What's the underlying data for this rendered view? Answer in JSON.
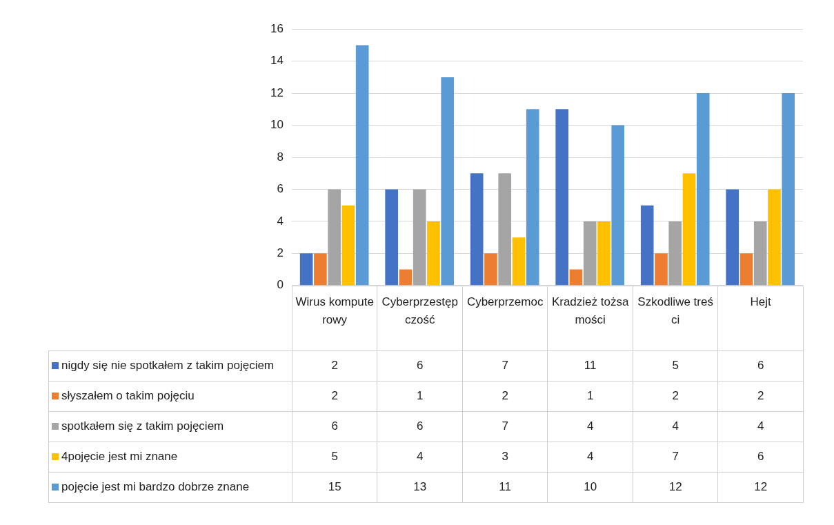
{
  "chart_data": {
    "type": "bar",
    "categories": [
      "Wirus komputerowy",
      "Cyberprzestępczość",
      "Cyberprzemoc",
      "Kradzież tożsamości",
      "Szkodliwe treści",
      "Hejt"
    ],
    "series": [
      {
        "name": "nigdy się nie spotkałem z takim pojęciem",
        "color": "#4472c4",
        "values": [
          2,
          6,
          7,
          11,
          5,
          6
        ]
      },
      {
        "name": "słyszałem o takim pojęciu",
        "color": "#ed7d31",
        "values": [
          2,
          1,
          2,
          1,
          2,
          2
        ]
      },
      {
        "name": "spotkałem się z takim pojęciem",
        "color": "#a5a5a5",
        "values": [
          6,
          6,
          7,
          4,
          4,
          4
        ]
      },
      {
        "name": "4pojęcie jest mi znane",
        "color": "#ffc000",
        "values": [
          5,
          4,
          3,
          4,
          7,
          6
        ]
      },
      {
        "name": "pojęcie jest mi bardzo dobrze znane",
        "color": "#5b9bd5",
        "values": [
          15,
          13,
          11,
          10,
          12,
          12
        ]
      }
    ],
    "ylim": [
      0,
      16
    ],
    "yticks": [
      0,
      2,
      4,
      6,
      8,
      10,
      12,
      14,
      16
    ],
    "grid": "y",
    "legend": "bottom",
    "data_labels": true
  }
}
